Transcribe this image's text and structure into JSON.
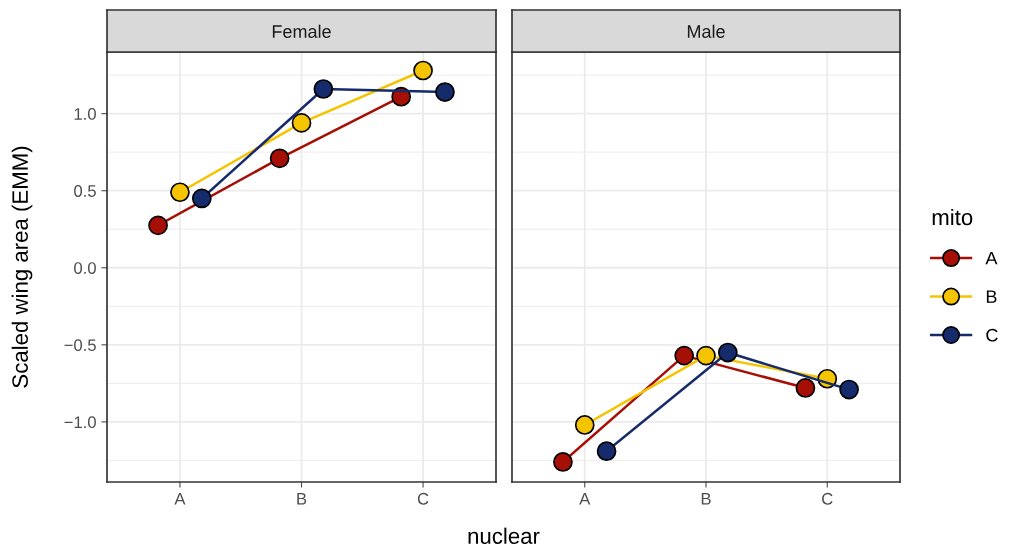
{
  "chart_data": [
    {
      "type": "line",
      "title": "Female",
      "categories": [
        "A",
        "B",
        "C"
      ],
      "ylabel": "Scaled wing area (EMM)",
      "xlabel": "nuclear",
      "legend_title": "mito",
      "legend": "right",
      "series": [
        {
          "name": "A",
          "color": "#a50f05",
          "values": [
            0.275,
            0.71,
            1.11
          ]
        },
        {
          "name": "B",
          "color": "#f5c400",
          "values": [
            0.49,
            0.94,
            1.28
          ]
        },
        {
          "name": "C",
          "color": "#152b6b",
          "values": [
            0.45,
            1.16,
            1.14
          ]
        }
      ],
      "ylim": [
        -1.39,
        1.4
      ],
      "yticks": [
        {
          "value": -1.0,
          "label": "−1.0"
        },
        {
          "value": -0.5,
          "label": "−0.5"
        },
        {
          "value": 0.0,
          "label": "0.0"
        },
        {
          "value": 0.5,
          "label": "0.5"
        },
        {
          "value": 1.0,
          "label": "1.0"
        }
      ],
      "grid": true,
      "marker": "circle",
      "line_style": "solid"
    },
    {
      "type": "line",
      "title": "Male",
      "categories": [
        "A",
        "B",
        "C"
      ],
      "series": [
        {
          "color": "#a50f05",
          "values": [
            -1.26,
            -0.57,
            -0.78
          ]
        },
        {
          "color": "#f5c400",
          "values": [
            -1.02,
            -0.57,
            -0.72
          ]
        },
        {
          "color": "#152b6b",
          "values": [
            -1.19,
            -0.55,
            -0.79
          ]
        }
      ],
      "ylim": [
        -1.39,
        1.4
      ],
      "yticks": [
        {
          "value": -1.0,
          "label": null
        },
        {
          "value": -0.5,
          "label": null
        },
        {
          "value": 0.0,
          "label": null
        },
        {
          "value": 0.5,
          "label": null
        },
        {
          "value": 1.0,
          "label": null
        }
      ],
      "tick_labels": "x",
      "grid": true,
      "marker": "circle",
      "line_style": "solid"
    }
  ]
}
